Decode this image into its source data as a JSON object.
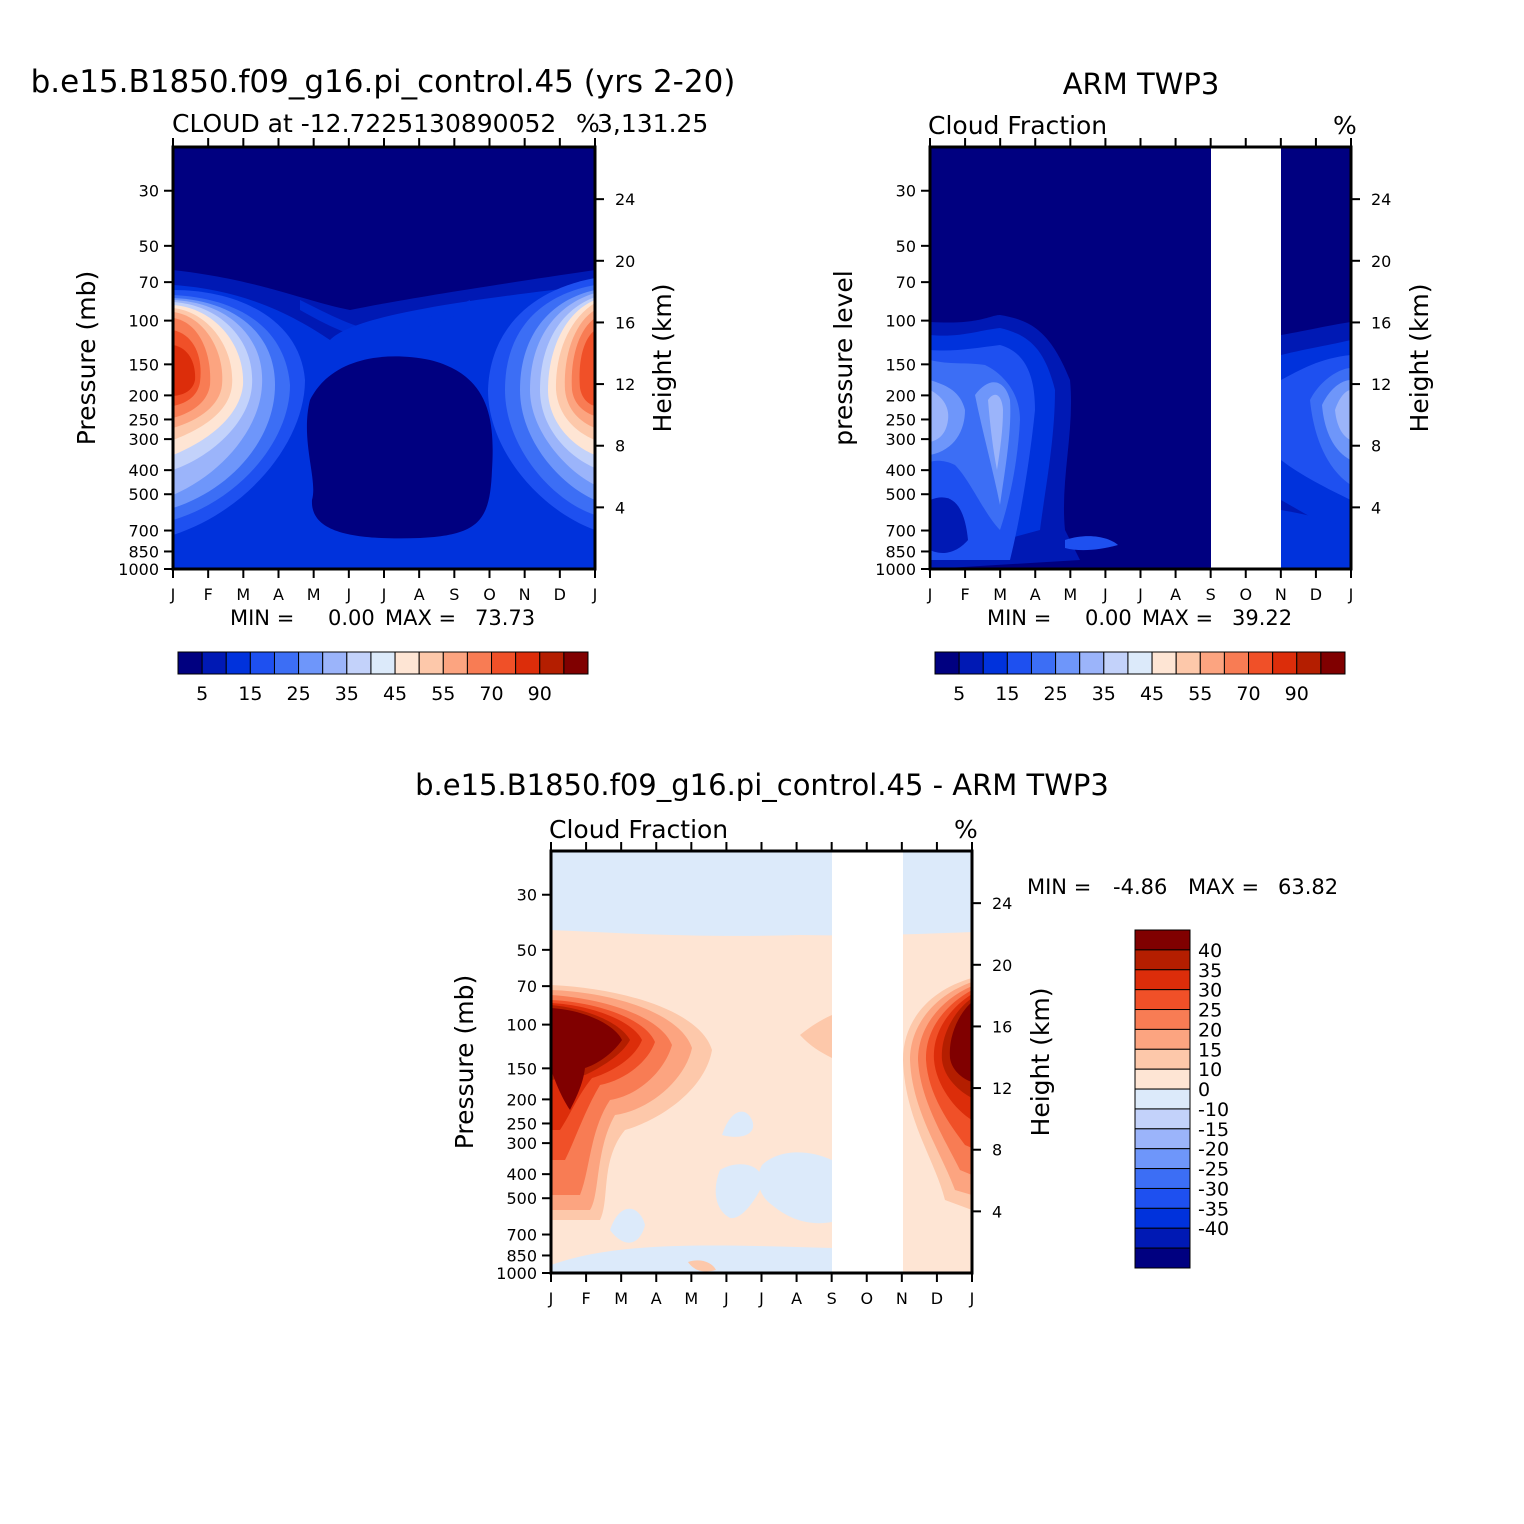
{
  "figure": {
    "months": [
      "J",
      "F",
      "M",
      "A",
      "M",
      "J",
      "J",
      "A",
      "S",
      "O",
      "N",
      "D",
      "J"
    ],
    "pressure_ticks": [
      "30",
      "50",
      "70",
      "100",
      "150",
      "200",
      "250",
      "300",
      "400",
      "500",
      "700",
      "850",
      "1000"
    ],
    "height_ticks": [
      "24",
      "20",
      "16",
      "12",
      "8",
      "4"
    ],
    "colors": {
      "cloud_scale": [
        "#000080",
        "#0019b4",
        "#0032dc",
        "#1e50f0",
        "#3c6ef5",
        "#6e96fa",
        "#9bb4fa",
        "#c3d2fa",
        "#dceafa",
        "#fee5d4",
        "#fdc8aa",
        "#fca480",
        "#f87c54",
        "#f05028",
        "#dc2d0a",
        "#b41e00",
        "#800000"
      ],
      "diff_scale": [
        "#000080",
        "#0019b4",
        "#0032dc",
        "#1e50f0",
        "#3c6ef5",
        "#6e96fa",
        "#9bb4fa",
        "#c3d2fa",
        "#dceafa",
        "#fee5d4",
        "#fdc8aa",
        "#fca480",
        "#f87c54",
        "#f05028",
        "#dc2d0a",
        "#b41e00",
        "#800000"
      ]
    }
  },
  "chart_data": [
    {
      "type": "heatmap",
      "panel": "model",
      "main_title": "b.e15.B1850.f09_g16.pi_control.45 (yrs 2-20)",
      "subtitle": "CLOUD at -12.7225130890052",
      "subtitle_suffix": "3,131.25",
      "units": "%",
      "ylabel": "Pressure (mb)",
      "ylabel_right": "Height (km)",
      "xlabel": "",
      "min_label": "MIN =",
      "min_value": "0.00",
      "max_label": "MAX =",
      "max_value": "73.73",
      "colorbar_labels": [
        "5",
        "15",
        "25",
        "35",
        "45",
        "55",
        "70",
        "90"
      ]
    },
    {
      "type": "heatmap",
      "panel": "observation",
      "main_title": "ARM TWP3",
      "subtitle": "Cloud Fraction",
      "units": "%",
      "ylabel": "pressure level",
      "ylabel_right": "Height (km)",
      "xlabel": "",
      "missing_months": [
        "S",
        "O",
        "N"
      ],
      "min_label": "MIN =",
      "min_value": "0.00",
      "max_label": "MAX =",
      "max_value": "39.22",
      "colorbar_labels": [
        "5",
        "15",
        "25",
        "35",
        "45",
        "55",
        "70",
        "90"
      ]
    },
    {
      "type": "heatmap",
      "panel": "difference",
      "main_title": "b.e15.B1850.f09_g16.pi_control.45 - ARM TWP3",
      "subtitle": "Cloud Fraction",
      "units": "%",
      "ylabel": "Pressure (mb)",
      "ylabel_right": "Height (km)",
      "xlabel": "",
      "min_label": "MIN =",
      "min_value": "-4.86",
      "max_label": "MAX =",
      "max_value": "63.82",
      "colorbar_labels": [
        "40",
        "35",
        "30",
        "25",
        "20",
        "15",
        "10",
        "0",
        "-10",
        "-15",
        "-20",
        "-25",
        "-30",
        "-35",
        "-40"
      ]
    }
  ]
}
